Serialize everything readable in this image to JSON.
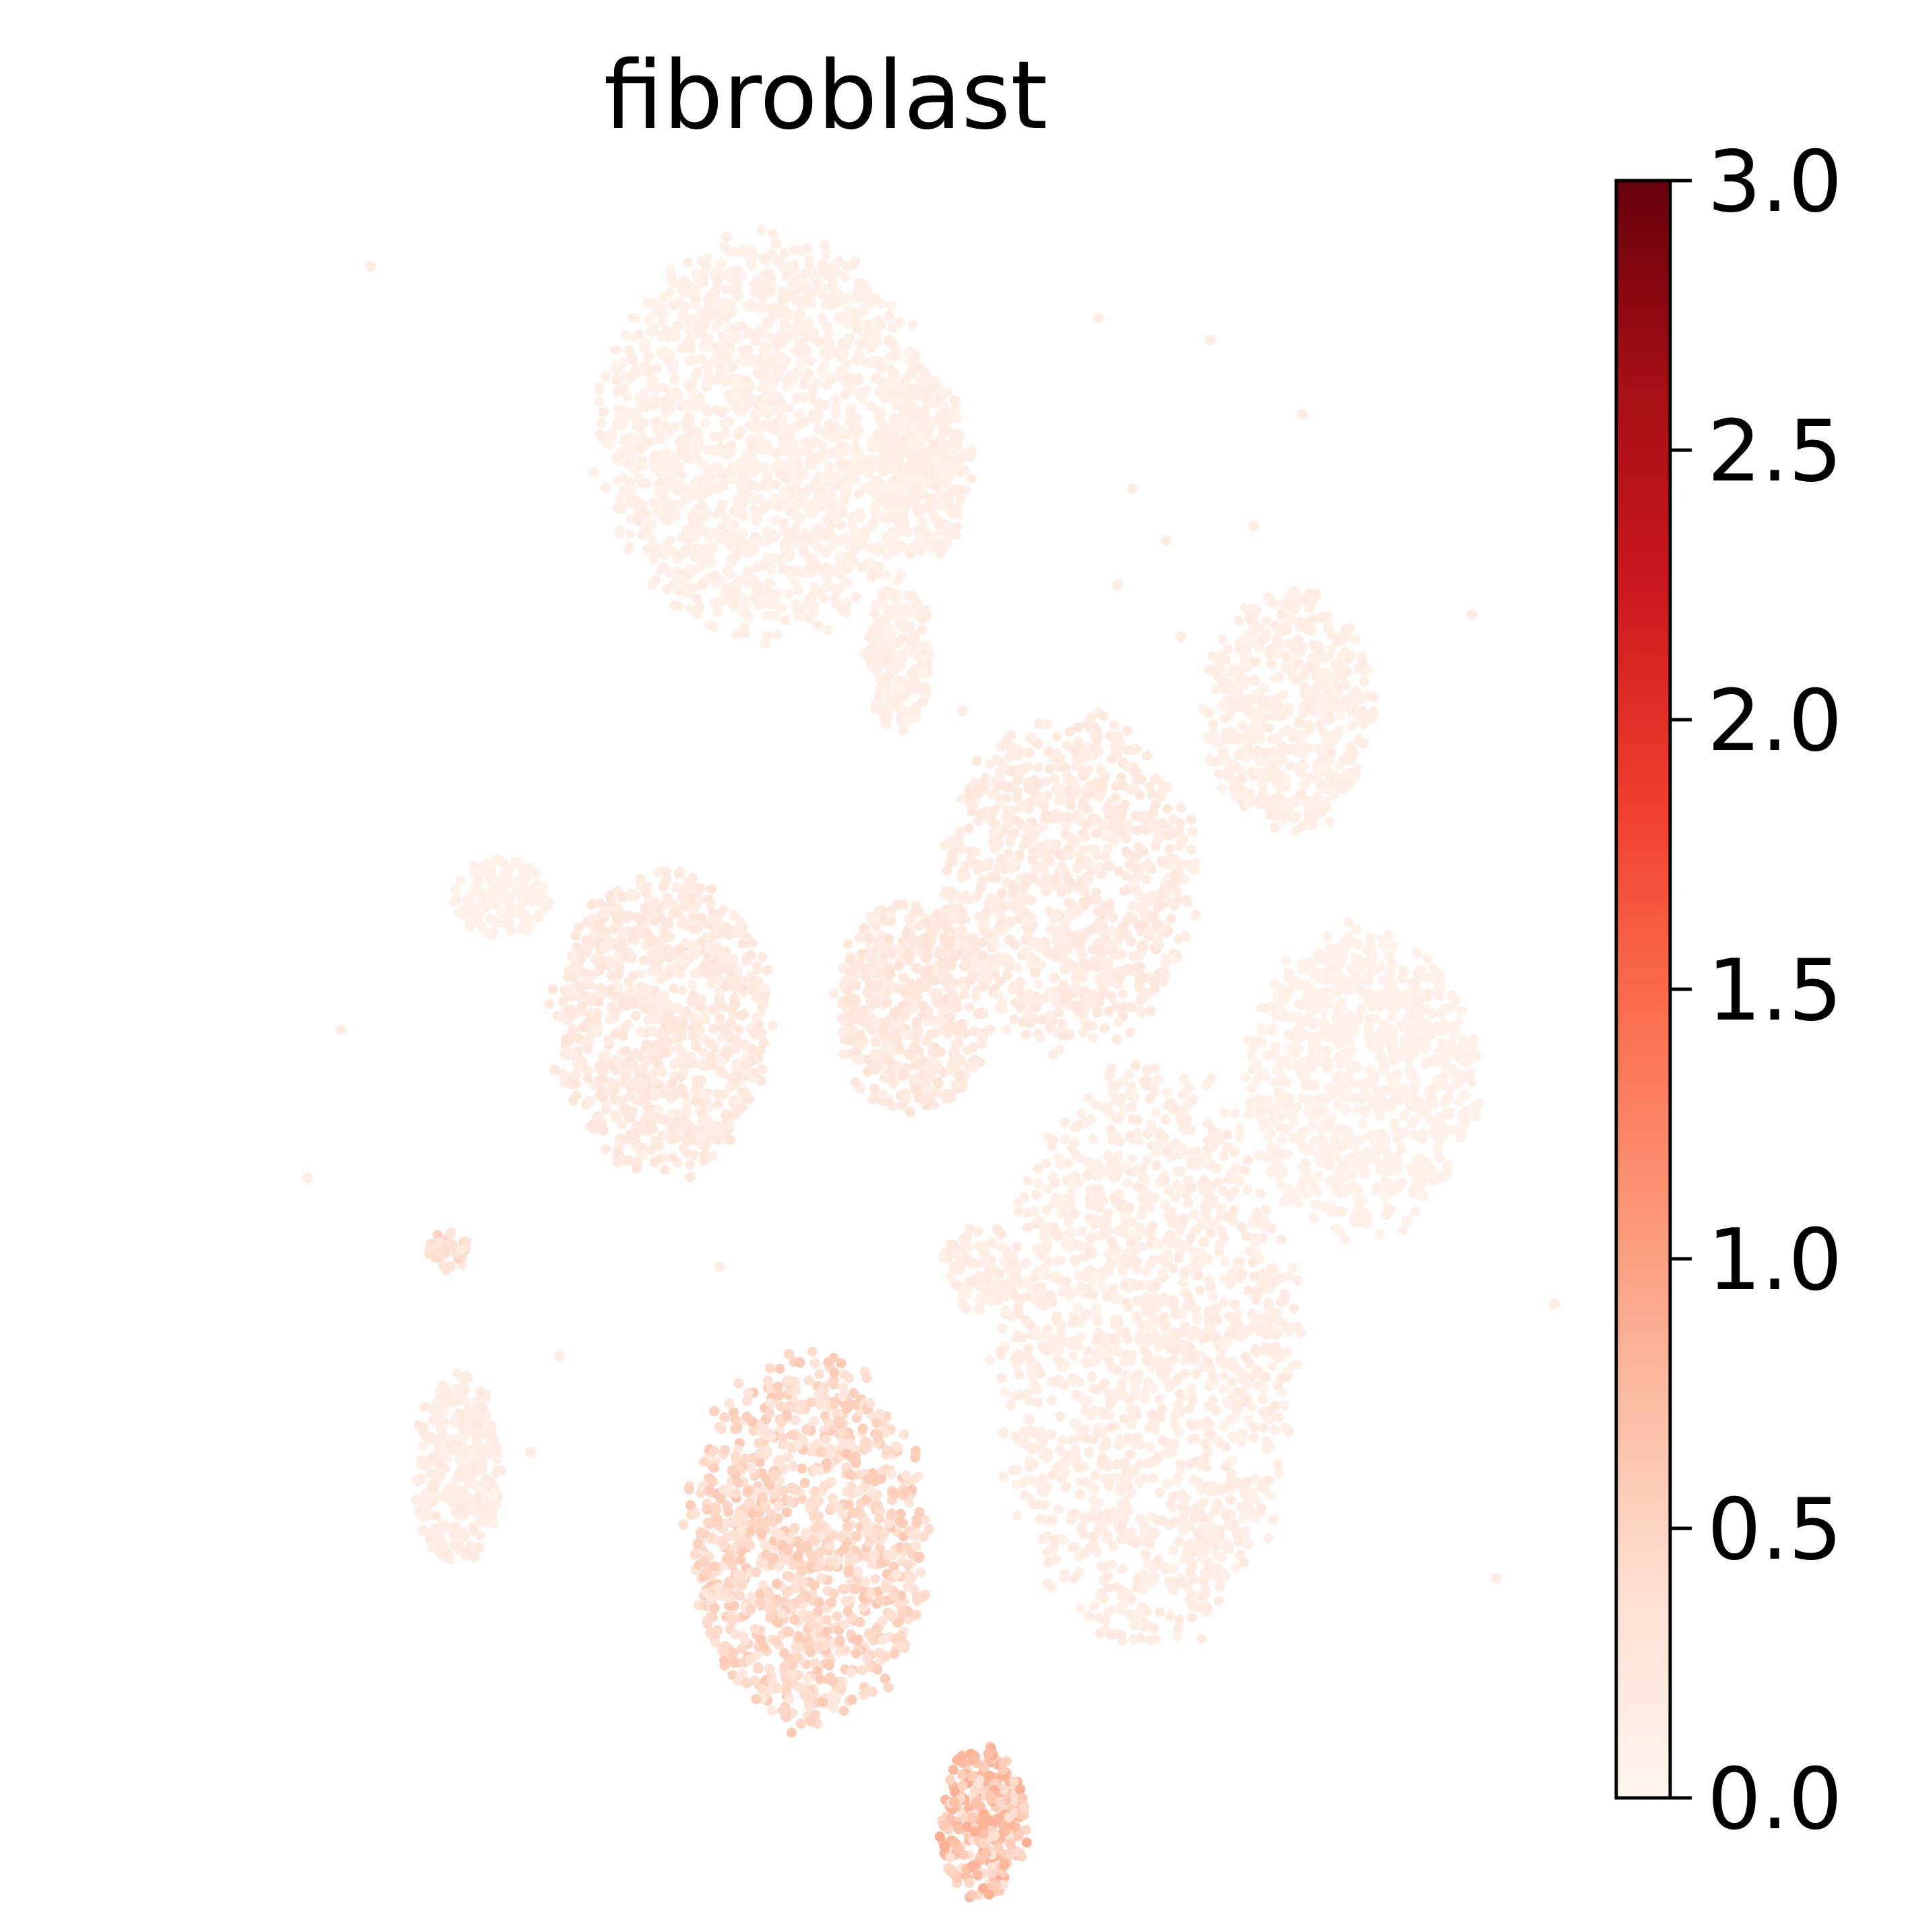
{
  "chart_data": {
    "type": "scatter",
    "title": "fibroblast",
    "xlabel": "",
    "ylabel": "",
    "grid": false,
    "axes_visible": false,
    "colormap": "Reds",
    "colorbar": {
      "range": [
        0.0,
        3.0
      ],
      "ticks": [
        "0.0",
        "0.5",
        "1.0",
        "1.5",
        "2.0",
        "2.5",
        "3.0"
      ],
      "tick_values": [
        0.0,
        0.5,
        1.0,
        1.5,
        2.0,
        2.5,
        3.0
      ],
      "colors": [
        "#fff5f0",
        "#fee0d2",
        "#fcbba1",
        "#fc9272",
        "#fb6a4a",
        "#ef3b2c",
        "#cb181d",
        "#a50f15",
        "#67000d"
      ]
    },
    "clusters": [
      {
        "cx": 0.0,
        "cy": 0.82,
        "rx": 0.34,
        "ry": 0.26,
        "value": 0.1,
        "n": 1600
      },
      {
        "cx": 0.33,
        "cy": 0.78,
        "rx": 0.09,
        "ry": 0.12,
        "value": 0.12,
        "n": 260
      },
      {
        "cx": 0.27,
        "cy": 0.52,
        "rx": 0.07,
        "ry": 0.1,
        "value": 0.12,
        "n": 180
      },
      {
        "cx": -0.55,
        "cy": 0.2,
        "rx": 0.1,
        "ry": 0.05,
        "value": 0.08,
        "n": 140
      },
      {
        "cx": -0.22,
        "cy": 0.03,
        "rx": 0.22,
        "ry": 0.2,
        "value": 0.2,
        "n": 900
      },
      {
        "cx": 0.3,
        "cy": 0.05,
        "rx": 0.16,
        "ry": 0.14,
        "value": 0.22,
        "n": 520
      },
      {
        "cx": 0.62,
        "cy": 0.22,
        "rx": 0.25,
        "ry": 0.22,
        "value": 0.18,
        "n": 900
      },
      {
        "cx": 1.07,
        "cy": 0.45,
        "rx": 0.17,
        "ry": 0.16,
        "value": 0.12,
        "n": 520
      },
      {
        "cx": 1.22,
        "cy": -0.05,
        "rx": 0.24,
        "ry": 0.2,
        "value": 0.08,
        "n": 850
      },
      {
        "cx": 0.78,
        "cy": -0.42,
        "rx": 0.3,
        "ry": 0.38,
        "value": 0.14,
        "n": 1500
      },
      {
        "cx": -0.64,
        "cy": -0.58,
        "rx": 0.09,
        "ry": 0.13,
        "value": 0.15,
        "n": 300
      },
      {
        "cx": -0.66,
        "cy": -0.28,
        "rx": 0.04,
        "ry": 0.03,
        "value": 0.35,
        "n": 40
      },
      {
        "cx": 0.08,
        "cy": -0.67,
        "rx": 0.24,
        "ry": 0.24,
        "value": 0.42,
        "n": 1100
      },
      {
        "cx": 0.44,
        "cy": -1.05,
        "rx": 0.09,
        "ry": 0.1,
        "value": 0.6,
        "n": 330
      },
      {
        "cx": 0.44,
        "cy": -0.3,
        "rx": 0.08,
        "ry": 0.06,
        "value": 0.15,
        "n": 100
      }
    ],
    "outliers": [
      [
        -0.82,
        1.05
      ],
      [
        0.68,
        0.98
      ],
      [
        0.91,
        0.95
      ],
      [
        1.1,
        0.85
      ],
      [
        0.72,
        0.62
      ],
      [
        0.85,
        0.55
      ],
      [
        1.45,
        0.58
      ],
      [
        1.62,
        -0.35
      ],
      [
        1.5,
        -0.72
      ],
      [
        -0.95,
        -0.18
      ],
      [
        -0.88,
        0.02
      ],
      [
        -0.43,
        -0.42
      ],
      [
        -0.49,
        -0.55
      ],
      [
        -0.1,
        -0.3
      ],
      [
        0.5,
        0.4
      ],
      [
        0.6,
        0.33
      ],
      [
        0.4,
        0.45
      ],
      [
        1.0,
        0.7
      ],
      [
        0.75,
        0.75
      ],
      [
        0.82,
        0.68
      ]
    ]
  }
}
